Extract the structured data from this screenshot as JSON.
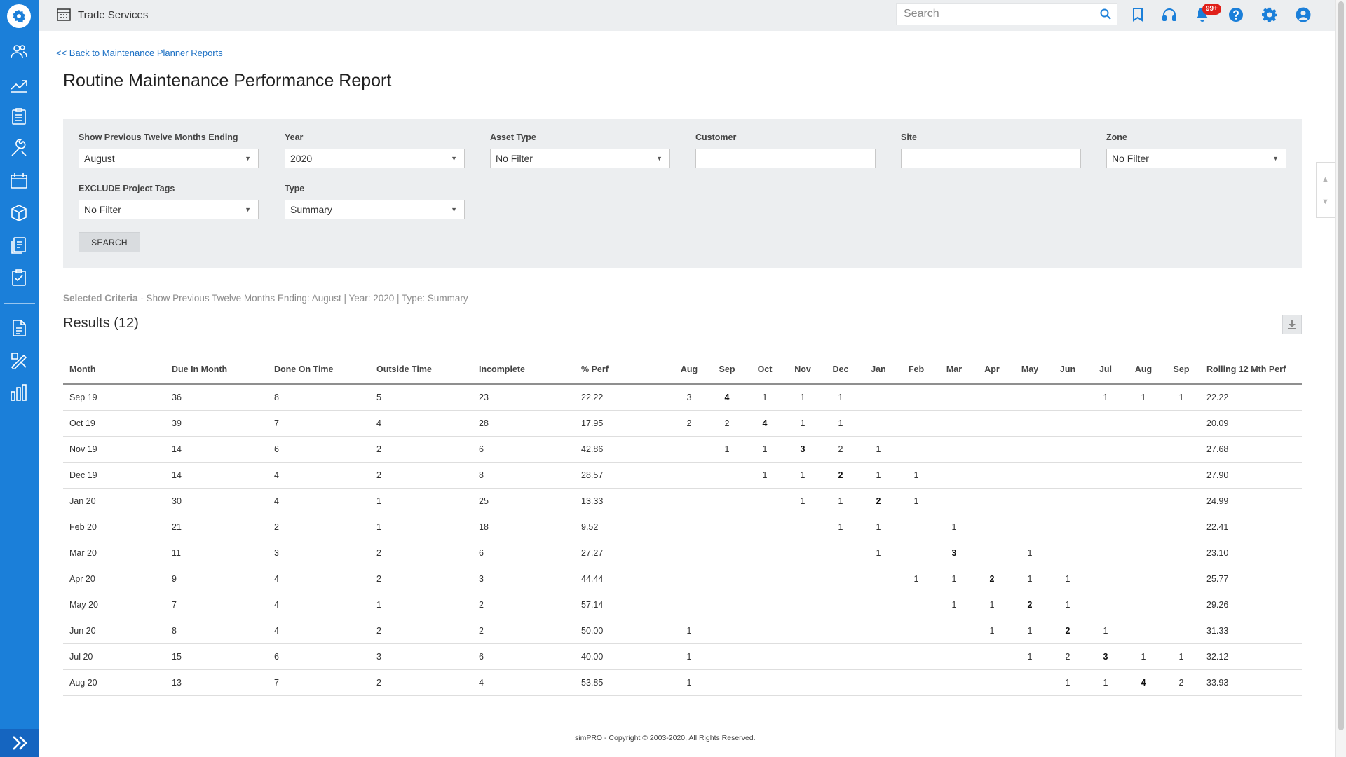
{
  "colors": {
    "sidebar": "#1b7fd9",
    "link": "#1a6fc4",
    "badge": "#e0201a",
    "topbar_icons": "#1b7fd9"
  },
  "header": {
    "company": "Trade Services",
    "search_placeholder": "Search",
    "notification_badge": "99+",
    "icons": [
      "bookmark-icon",
      "headset-icon",
      "bell-icon",
      "help-icon",
      "settings-icon",
      "user-icon"
    ]
  },
  "sidebar": {
    "icons": [
      "people-icon",
      "trend-icon",
      "clipboard-icon",
      "tools-icon",
      "calendar-icon",
      "box-icon",
      "documents-icon",
      "checklist-icon",
      "document-icon",
      "drafting-icon",
      "bar-chart-icon"
    ]
  },
  "page": {
    "back_link": "<< Back to Maintenance Planner Reports",
    "title": "Routine Maintenance Performance Report"
  },
  "filters": {
    "months_label": "Show Previous Twelve Months Ending",
    "months_value": "August",
    "year_label": "Year",
    "year_value": "2020",
    "asset_type_label": "Asset Type",
    "asset_type_value": "No Filter",
    "customer_label": "Customer",
    "customer_value": "",
    "site_label": "Site",
    "site_value": "",
    "zone_label": "Zone",
    "zone_value": "No Filter",
    "exclude_tags_label": "EXCLUDE Project Tags",
    "exclude_tags_value": "No Filter",
    "type_label": "Type",
    "type_value": "Summary",
    "search_button": "SEARCH"
  },
  "criteria": {
    "label": "Selected Criteria",
    "text": " - Show Previous Twelve Months Ending: August | Year: 2020 | Type: Summary"
  },
  "results": {
    "heading": "Results (12)",
    "columns": [
      "Month",
      "Due In Month",
      "Done On Time",
      "Outside Time",
      "Incomplete",
      "% Perf"
    ],
    "month_columns": [
      "Aug",
      "Sep",
      "Oct",
      "Nov",
      "Dec",
      "Jan",
      "Feb",
      "Mar",
      "Apr",
      "May",
      "Jun",
      "Jul",
      "Aug",
      "Sep"
    ],
    "rolling_label": "Rolling 12 Mth Perf",
    "rows": [
      {
        "month": "Sep 19",
        "due": "36",
        "done": "8",
        "outside": "5",
        "incomplete": "23",
        "perf": "22.22",
        "cells": [
          "3",
          "4",
          "1",
          "1",
          "1",
          "",
          "",
          "",
          "",
          "",
          "",
          "1",
          "1",
          "1"
        ],
        "highlight": 1,
        "rolling": "22.22"
      },
      {
        "month": "Oct 19",
        "due": "39",
        "done": "7",
        "outside": "4",
        "incomplete": "28",
        "perf": "17.95",
        "cells": [
          "2",
          "2",
          "4",
          "1",
          "1",
          "",
          "",
          "",
          "",
          "",
          "",
          "",
          "",
          ""
        ],
        "highlight": 2,
        "rolling": "20.09"
      },
      {
        "month": "Nov 19",
        "due": "14",
        "done": "6",
        "outside": "2",
        "incomplete": "6",
        "perf": "42.86",
        "cells": [
          "",
          "1",
          "1",
          "3",
          "2",
          "1",
          "",
          "",
          "",
          "",
          "",
          "",
          "",
          ""
        ],
        "highlight": 3,
        "rolling": "27.68"
      },
      {
        "month": "Dec 19",
        "due": "14",
        "done": "4",
        "outside": "2",
        "incomplete": "8",
        "perf": "28.57",
        "cells": [
          "",
          "",
          "1",
          "1",
          "2",
          "1",
          "1",
          "",
          "",
          "",
          "",
          "",
          "",
          ""
        ],
        "highlight": 4,
        "rolling": "27.90"
      },
      {
        "month": "Jan 20",
        "due": "30",
        "done": "4",
        "outside": "1",
        "incomplete": "25",
        "perf": "13.33",
        "cells": [
          "",
          "",
          "",
          "1",
          "1",
          "2",
          "1",
          "",
          "",
          "",
          "",
          "",
          "",
          ""
        ],
        "highlight": 5,
        "rolling": "24.99"
      },
      {
        "month": "Feb 20",
        "due": "21",
        "done": "2",
        "outside": "1",
        "incomplete": "18",
        "perf": "9.52",
        "cells": [
          "",
          "",
          "",
          "",
          "1",
          "1",
          "",
          "1",
          "",
          "",
          "",
          "",
          "",
          ""
        ],
        "highlight": 6,
        "rolling": "22.41"
      },
      {
        "month": "Mar 20",
        "due": "11",
        "done": "3",
        "outside": "2",
        "incomplete": "6",
        "perf": "27.27",
        "cells": [
          "",
          "",
          "",
          "",
          "",
          "1",
          "",
          "3",
          "",
          "1",
          "",
          "",
          "",
          ""
        ],
        "highlight": 7,
        "rolling": "23.10"
      },
      {
        "month": "Apr 20",
        "due": "9",
        "done": "4",
        "outside": "2",
        "incomplete": "3",
        "perf": "44.44",
        "cells": [
          "",
          "",
          "",
          "",
          "",
          "",
          "1",
          "1",
          "2",
          "1",
          "1",
          "",
          "",
          ""
        ],
        "highlight": 8,
        "rolling": "25.77"
      },
      {
        "month": "May 20",
        "due": "7",
        "done": "4",
        "outside": "1",
        "incomplete": "2",
        "perf": "57.14",
        "cells": [
          "",
          "",
          "",
          "",
          "",
          "",
          "",
          "1",
          "1",
          "2",
          "1",
          "",
          "",
          ""
        ],
        "highlight": 9,
        "rolling": "29.26"
      },
      {
        "month": "Jun 20",
        "due": "8",
        "done": "4",
        "outside": "2",
        "incomplete": "2",
        "perf": "50.00",
        "cells": [
          "1",
          "",
          "",
          "",
          "",
          "",
          "",
          "",
          "1",
          "1",
          "2",
          "1",
          "",
          ""
        ],
        "highlight": 10,
        "rolling": "31.33"
      },
      {
        "month": "Jul 20",
        "due": "15",
        "done": "6",
        "outside": "3",
        "incomplete": "6",
        "perf": "40.00",
        "cells": [
          "1",
          "",
          "",
          "",
          "",
          "",
          "",
          "",
          "",
          "1",
          "2",
          "3",
          "1",
          "1"
        ],
        "highlight": 11,
        "rolling": "32.12"
      },
      {
        "month": "Aug 20",
        "due": "13",
        "done": "7",
        "outside": "2",
        "incomplete": "4",
        "perf": "53.85",
        "cells": [
          "1",
          "",
          "",
          "",
          "",
          "",
          "",
          "",
          "",
          "",
          "1",
          "1",
          "4",
          "2"
        ],
        "highlight": 12,
        "rolling": "33.93"
      }
    ]
  },
  "footer": "simPRO - Copyright © 2003-2020, All Rights Reserved."
}
